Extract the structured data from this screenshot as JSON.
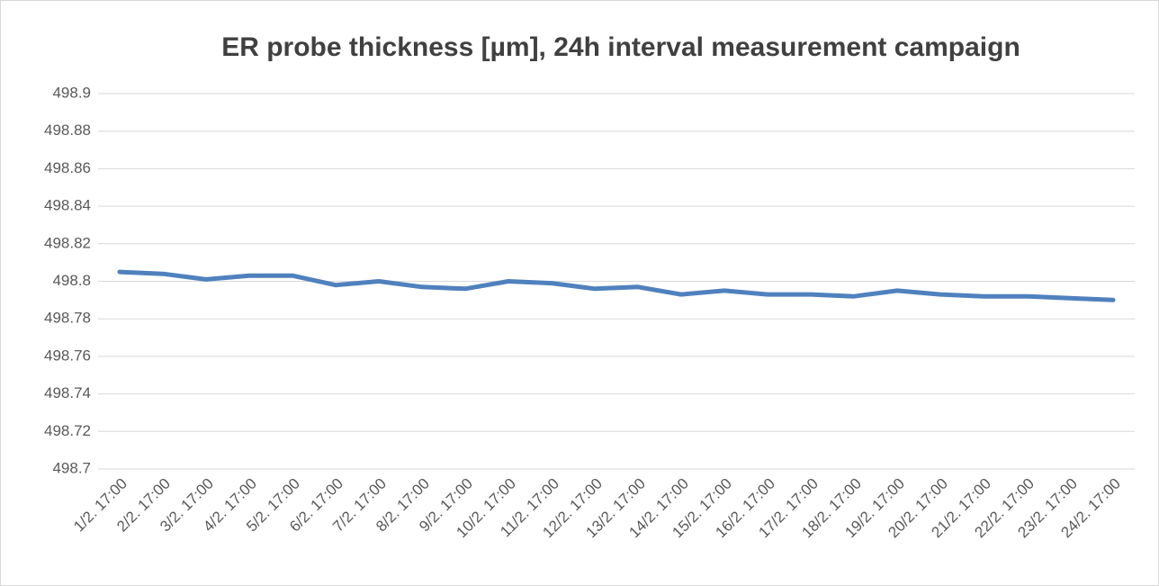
{
  "chart_data": {
    "type": "line",
    "title": "ER probe thickness [µm], 24h interval measurement campaign",
    "categories": [
      "1/2. 17:00",
      "2/2. 17:00",
      "3/2. 17:00",
      "4/2. 17:00",
      "5/2. 17:00",
      "6/2. 17:00",
      "7/2. 17:00",
      "8/2. 17:00",
      "9/2. 17:00",
      "10/2. 17:00",
      "11/2. 17:00",
      "12/2. 17:00",
      "13/2. 17:00",
      "14/2. 17:00",
      "15/2. 17:00",
      "16/2. 17:00",
      "17/2. 17:00",
      "18/2. 17:00",
      "19/2. 17:00",
      "20/2. 17:00",
      "21/2. 17:00",
      "22/2. 17:00",
      "23/2. 17:00",
      "24/2. 17:00"
    ],
    "values": [
      498.805,
      498.804,
      498.801,
      498.803,
      498.803,
      498.798,
      498.8,
      498.797,
      498.796,
      498.8,
      498.799,
      498.796,
      498.797,
      498.793,
      498.795,
      498.793,
      498.793,
      498.792,
      498.795,
      498.793,
      498.792,
      498.792,
      498.791,
      498.79
    ],
    "color": "#4f81bd",
    "ylim": [
      498.7,
      498.9
    ],
    "yticks": [
      498.7,
      498.72,
      498.74,
      498.76,
      498.78,
      498.8,
      498.82,
      498.84,
      498.86,
      498.88,
      498.9
    ],
    "grid": true
  }
}
